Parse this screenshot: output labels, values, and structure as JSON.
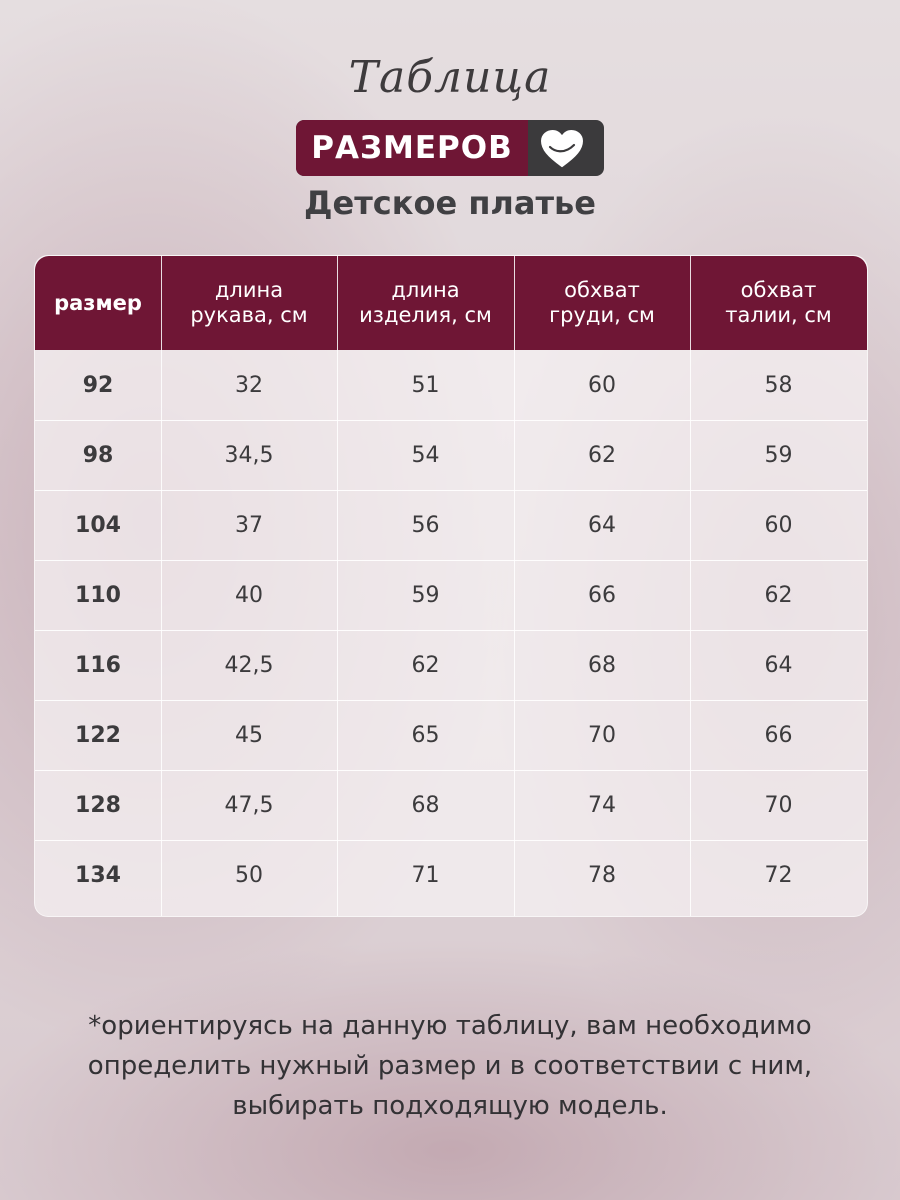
{
  "header": {
    "script_title": "Таблица",
    "badge": "РАЗМЕРОВ",
    "subtitle": "Детское платье",
    "heart_icon": "heart-icon"
  },
  "colors": {
    "accent": "#6f1635",
    "dark": "#3b3a3c",
    "text": "#3c3b3d"
  },
  "table": {
    "headers": [
      [
        "размер"
      ],
      [
        "длина",
        "рукава, см"
      ],
      [
        "длина",
        "изделия, см"
      ],
      [
        "обхват",
        "груди, см"
      ],
      [
        "обхват",
        "талии, см"
      ]
    ],
    "rows": [
      [
        "92",
        "32",
        "51",
        "60",
        "58"
      ],
      [
        "98",
        "34,5",
        "54",
        "62",
        "59"
      ],
      [
        "104",
        "37",
        "56",
        "64",
        "60"
      ],
      [
        "110",
        "40",
        "59",
        "66",
        "62"
      ],
      [
        "116",
        "42,5",
        "62",
        "68",
        "64"
      ],
      [
        "122",
        "45",
        "65",
        "70",
        "66"
      ],
      [
        "128",
        "47,5",
        "68",
        "74",
        "70"
      ],
      [
        "134",
        "50",
        "71",
        "78",
        "72"
      ]
    ]
  },
  "footnote": {
    "line1": "*ориентируясь на данную таблицу, вам необходимо",
    "line2": "определить нужный размер и в соответствии с ним,",
    "line3": "выбирать подходящую модель."
  }
}
